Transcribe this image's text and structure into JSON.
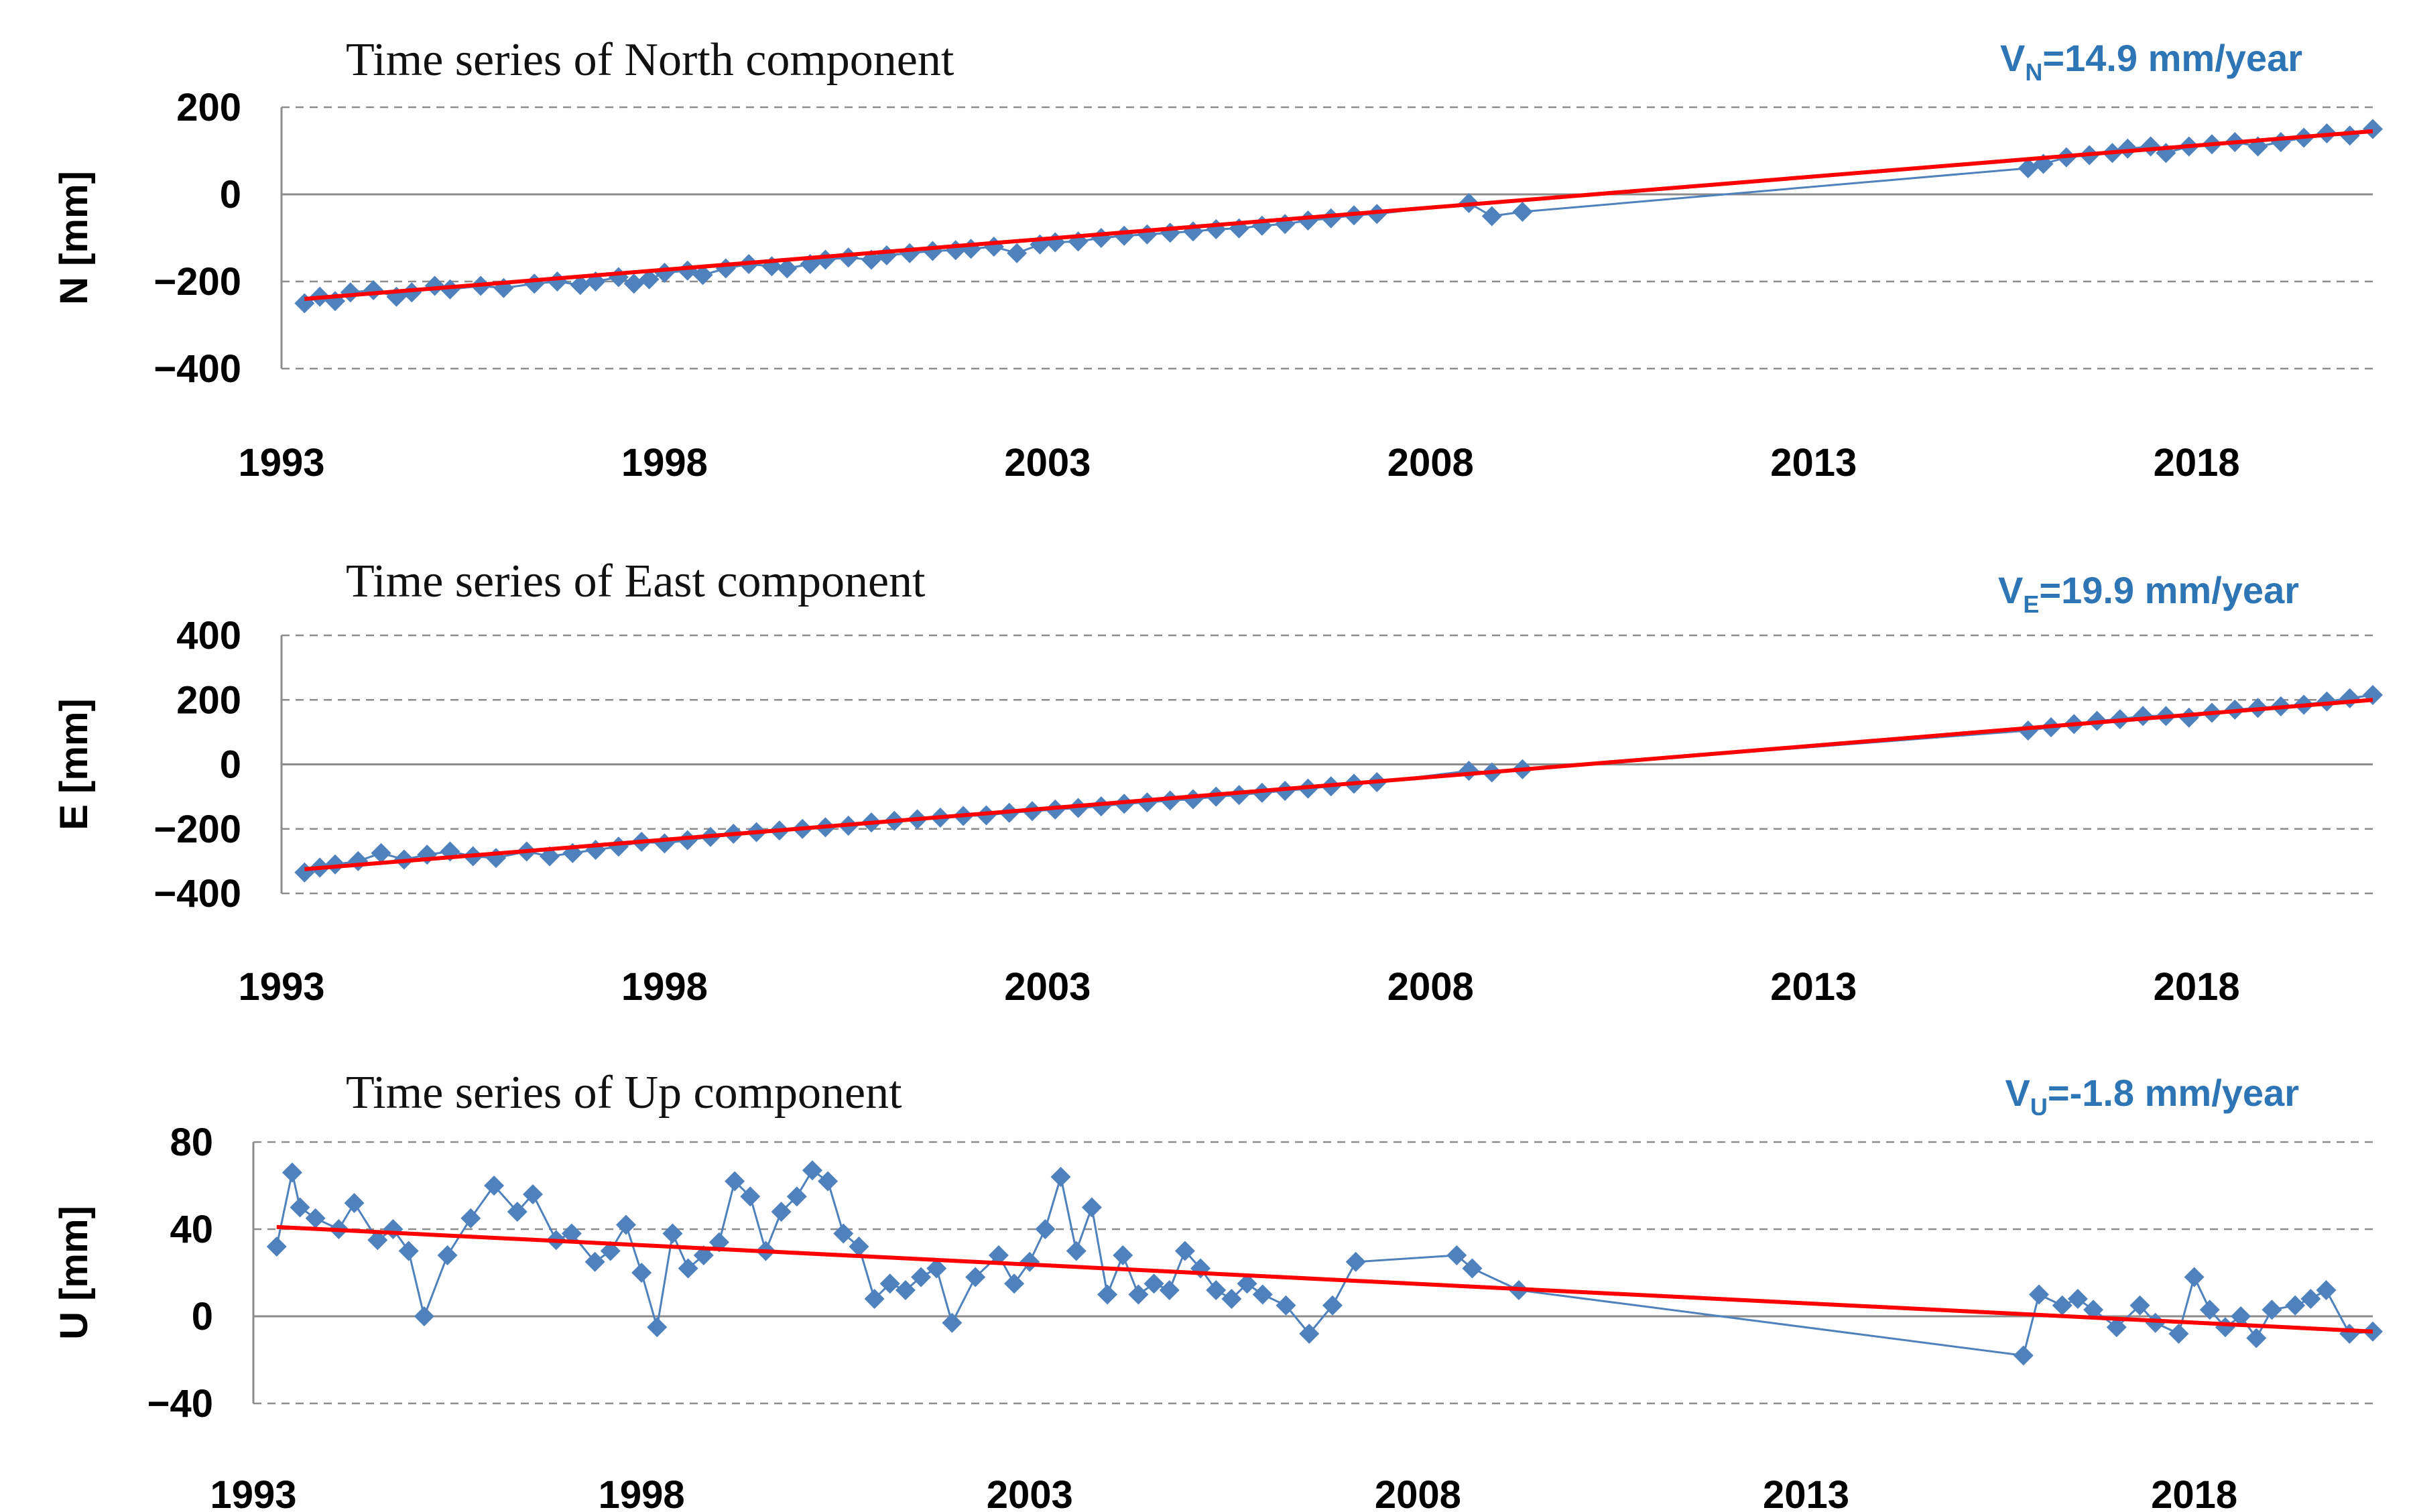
{
  "colors": {
    "marker": "#4F81BD",
    "trend": "#FF0000",
    "velocity_text": "#2E75B6"
  },
  "chart_data": [
    {
      "type": "scatter",
      "title": "Time series of North component",
      "ylabel": "N [mm]",
      "velocity": {
        "prefix": "V",
        "sub": "N",
        "rest": "=14.9 mm/year"
      },
      "xlim": [
        1993,
        2020.3
      ],
      "ylim": [
        -400,
        200
      ],
      "xticks": [
        1993,
        1998,
        2003,
        2008,
        2013,
        2018
      ],
      "xtick_labels": [
        "1993",
        "1998",
        "2003",
        "2008",
        "2013",
        "2018"
      ],
      "yticks": [
        -400,
        -200,
        0,
        200
      ],
      "ytick_labels": [
        "−400",
        "−200",
        "0",
        "200"
      ],
      "grid": true,
      "trend": {
        "x": [
          1993.3,
          2020.3
        ],
        "y": [
          -240,
          145
        ]
      },
      "x": [
        1993.3,
        1993.5,
        1993.7,
        1993.9,
        1994.2,
        1994.5,
        1994.7,
        1995,
        1995.2,
        1995.6,
        1995.9,
        1996.3,
        1996.6,
        1996.9,
        1997.1,
        1997.4,
        1997.6,
        1997.8,
        1998.0,
        1998.3,
        1998.5,
        1998.8,
        1999.1,
        1999.4,
        1999.6,
        1999.9,
        2000.1,
        2000.4,
        2000.7,
        2000.9,
        2001.2,
        2001.5,
        2001.8,
        2002.0,
        2002.3,
        2002.6,
        2002.9,
        2003.1,
        2003.4,
        2003.7,
        2004.0,
        2004.3,
        2004.6,
        2004.9,
        2005.2,
        2005.5,
        2005.8,
        2006.1,
        2006.4,
        2006.7,
        2007.0,
        2007.3,
        2008.5,
        2008.8,
        2009.2,
        2015.8,
        2016.0,
        2016.3,
        2016.6,
        2016.9,
        2017.1,
        2017.4,
        2017.6,
        2017.9,
        2018.2,
        2018.5,
        2018.8,
        2019.1,
        2019.4,
        2019.7,
        2020.0,
        2020.3
      ],
      "y": [
        -250,
        -235,
        -245,
        -225,
        -220,
        -235,
        -225,
        -210,
        -218,
        -210,
        -215,
        -205,
        -200,
        -208,
        -200,
        -190,
        -205,
        -195,
        -180,
        -175,
        -185,
        -170,
        -160,
        -165,
        -170,
        -160,
        -150,
        -145,
        -150,
        -140,
        -135,
        -130,
        -128,
        -125,
        -120,
        -135,
        -115,
        -110,
        -108,
        -100,
        -95,
        -92,
        -88,
        -85,
        -80,
        -78,
        -72,
        -68,
        -60,
        -55,
        -48,
        -45,
        -20,
        -50,
        -40,
        60,
        70,
        85,
        90,
        95,
        105,
        110,
        95,
        110,
        115,
        120,
        110,
        120,
        130,
        140,
        135,
        150
      ]
    },
    {
      "type": "scatter",
      "title": "Time series of East component",
      "ylabel": "E [mm]",
      "velocity": {
        "prefix": "V",
        "sub": "E",
        "rest": "=19.9 mm/year"
      },
      "xlim": [
        1993,
        2020.3
      ],
      "ylim": [
        -400,
        400
      ],
      "xticks": [
        1993,
        1998,
        2003,
        2008,
        2013,
        2018
      ],
      "xtick_labels": [
        "1993",
        "1998",
        "2003",
        "2008",
        "2013",
        "2018"
      ],
      "yticks": [
        -400,
        -200,
        0,
        200,
        400
      ],
      "ytick_labels": [
        "−400",
        "−200",
        "0",
        "200",
        "400"
      ],
      "grid": true,
      "trend": {
        "x": [
          1993.3,
          2020.3
        ],
        "y": [
          -325,
          200
        ]
      },
      "x": [
        1993.3,
        1993.5,
        1993.7,
        1994.0,
        1994.3,
        1994.6,
        1994.9,
        1995.2,
        1995.5,
        1995.8,
        1996.2,
        1996.5,
        1996.8,
        1997.1,
        1997.4,
        1997.7,
        1998.0,
        1998.3,
        1998.6,
        1998.9,
        1999.2,
        1999.5,
        1999.8,
        2000.1,
        2000.4,
        2000.7,
        2001.0,
        2001.3,
        2001.6,
        2001.9,
        2002.2,
        2002.5,
        2002.8,
        2003.1,
        2003.4,
        2003.7,
        2004.0,
        2004.3,
        2004.6,
        2004.9,
        2005.2,
        2005.5,
        2005.8,
        2006.1,
        2006.4,
        2006.7,
        2007.0,
        2007.3,
        2008.5,
        2008.8,
        2009.2,
        2015.8,
        2016.1,
        2016.4,
        2016.7,
        2017.0,
        2017.3,
        2017.6,
        2017.9,
        2018.2,
        2018.5,
        2018.8,
        2019.1,
        2019.4,
        2019.7,
        2020.0,
        2020.3
      ],
      "y": [
        -335,
        -320,
        -310,
        -300,
        -275,
        -295,
        -280,
        -270,
        -285,
        -290,
        -270,
        -285,
        -275,
        -265,
        -255,
        -240,
        -245,
        -235,
        -225,
        -215,
        -210,
        -205,
        -200,
        -195,
        -190,
        -180,
        -175,
        -170,
        -165,
        -160,
        -158,
        -150,
        -145,
        -140,
        -135,
        -130,
        -122,
        -118,
        -112,
        -108,
        -100,
        -95,
        -88,
        -82,
        -75,
        -68,
        -60,
        -55,
        -20,
        -25,
        -15,
        105,
        115,
        125,
        135,
        140,
        150,
        150,
        145,
        160,
        170,
        175,
        180,
        185,
        195,
        205,
        215
      ]
    },
    {
      "type": "line",
      "title": "Time series of Up component",
      "ylabel": "U [mm]",
      "velocity": {
        "prefix": "V",
        "sub": "U",
        "rest": "=-1.8 mm/year"
      },
      "xlim": [
        1993,
        2020.3
      ],
      "ylim": [
        -40,
        80
      ],
      "xticks": [
        1993,
        1998,
        2003,
        2008,
        2013,
        2018
      ],
      "xtick_labels": [
        "1993",
        "1998",
        "2003",
        "2008",
        "2013",
        "2018"
      ],
      "yticks": [
        -40,
        0,
        40,
        80
      ],
      "ytick_labels": [
        "−40",
        "0",
        "40",
        "80"
      ],
      "grid": true,
      "trend": {
        "x": [
          1993.3,
          2020.3
        ],
        "y": [
          41,
          -7
        ]
      },
      "x": [
        1993.3,
        1993.5,
        1993.6,
        1993.8,
        1994.1,
        1994.3,
        1994.6,
        1994.8,
        1995.0,
        1995.2,
        1995.5,
        1995.8,
        1996.1,
        1996.4,
        1996.6,
        1996.9,
        1997.1,
        1997.4,
        1997.6,
        1997.8,
        1998.0,
        1998.2,
        1998.4,
        1998.6,
        1998.8,
        1999.0,
        1999.2,
        1999.4,
        1999.6,
        1999.8,
        2000.0,
        2000.2,
        2000.4,
        2000.6,
        2000.8,
        2001.0,
        2001.2,
        2001.4,
        2001.6,
        2001.8,
        2002.0,
        2002.3,
        2002.6,
        2002.8,
        2003.0,
        2003.2,
        2003.4,
        2003.6,
        2003.8,
        2004.0,
        2004.2,
        2004.4,
        2004.6,
        2004.8,
        2005.0,
        2005.2,
        2005.4,
        2005.6,
        2005.8,
        2006.0,
        2006.3,
        2006.6,
        2006.9,
        2007.2,
        2008.5,
        2008.7,
        2009.3,
        2015.8,
        2016.0,
        2016.3,
        2016.5,
        2016.7,
        2017.0,
        2017.3,
        2017.5,
        2017.8,
        2018.0,
        2018.2,
        2018.4,
        2018.6,
        2018.8,
        2019.0,
        2019.3,
        2019.5,
        2019.7,
        2020.0,
        2020.3
      ],
      "y": [
        32,
        66,
        50,
        45,
        40,
        52,
        35,
        40,
        30,
        0,
        28,
        45,
        60,
        48,
        56,
        35,
        38,
        25,
        30,
        42,
        20,
        -5,
        38,
        22,
        28,
        34,
        62,
        55,
        30,
        48,
        55,
        67,
        62,
        38,
        32,
        8,
        15,
        12,
        18,
        22,
        -3,
        18,
        28,
        15,
        25,
        40,
        64,
        30,
        50,
        10,
        28,
        10,
        15,
        12,
        30,
        22,
        12,
        8,
        15,
        10,
        5,
        -8,
        5,
        25,
        28,
        22,
        12,
        -18,
        10,
        5,
        8,
        3,
        -5,
        5,
        -3,
        -8,
        18,
        3,
        -5,
        0,
        -10,
        3,
        5,
        8,
        12,
        -8,
        -7
      ]
    }
  ]
}
